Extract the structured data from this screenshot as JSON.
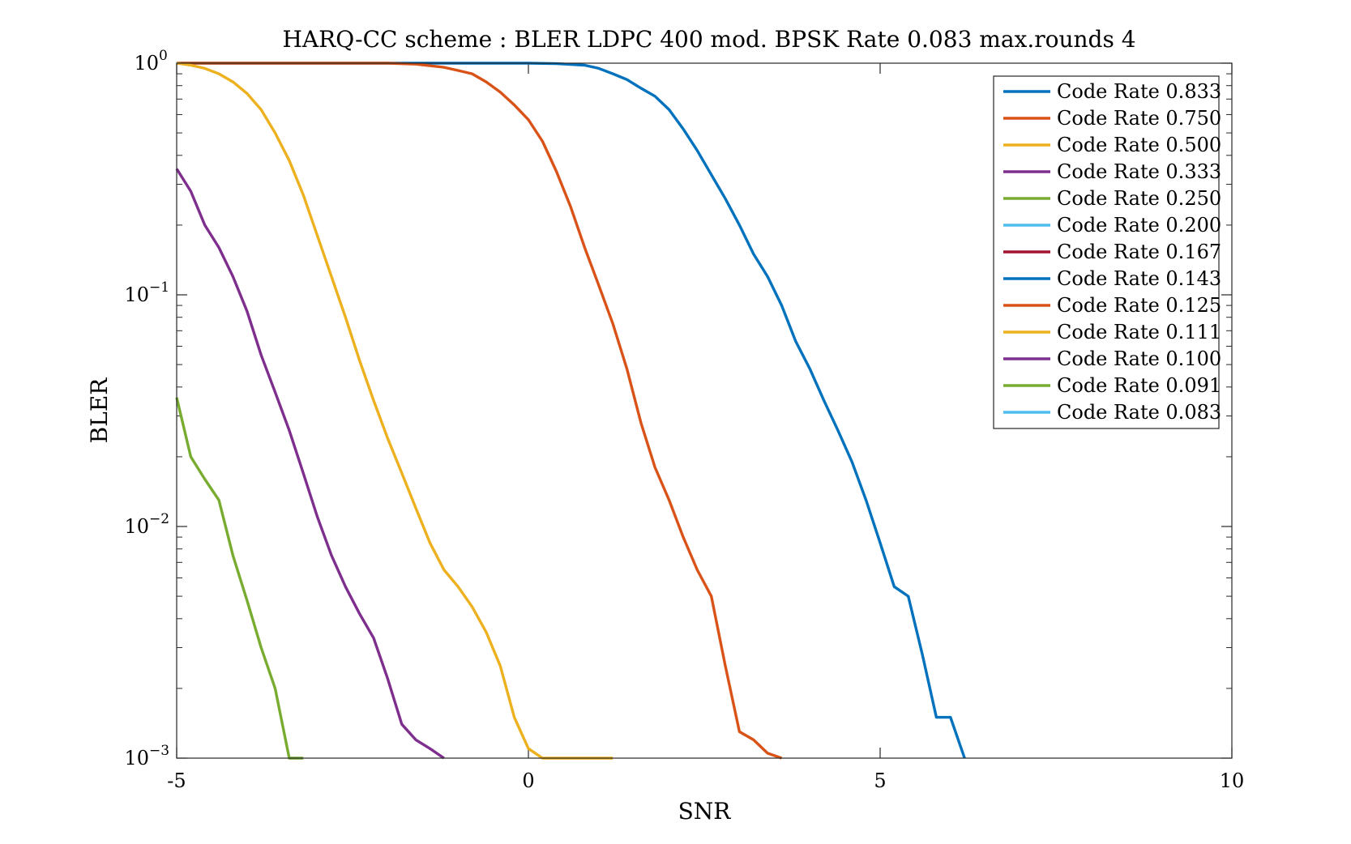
{
  "chart_data": {
    "type": "line",
    "title": "HARQ-CC scheme : BLER LDPC 400 mod. BPSK Rate 0.083 max.rounds 4",
    "xlabel": "SNR",
    "ylabel": "BLER",
    "xlim": [
      -5,
      10
    ],
    "ylim": [
      0.001,
      1
    ],
    "yscale": "log",
    "grid": false,
    "legend_position": "top-right",
    "x_ticks": [
      -5,
      0,
      5,
      10
    ],
    "x_tick_labels": [
      "-5",
      "0",
      "5",
      "10"
    ],
    "y_ticks": [
      1,
      0.1,
      0.01,
      0.001
    ],
    "y_tick_mantissa": [
      "10",
      "10",
      "10",
      "10"
    ],
    "y_tick_exponents": [
      "0",
      "−1",
      "−2",
      "−3"
    ],
    "series": [
      {
        "name": "Code Rate 0.833",
        "color": "#0072BD",
        "x": [
          -5,
          -3,
          -1,
          0,
          0.4,
          0.8,
          1.0,
          1.2,
          1.4,
          1.6,
          1.8,
          2.0,
          2.2,
          2.4,
          2.6,
          2.8,
          3.0,
          3.2,
          3.4,
          3.6,
          3.8,
          4.0,
          4.2,
          4.4,
          4.6,
          4.8,
          5.0,
          5.2,
          5.4,
          5.6,
          5.8,
          6.0,
          6.2
        ],
        "y": [
          1,
          1,
          1,
          1,
          0.995,
          0.98,
          0.95,
          0.9,
          0.85,
          0.78,
          0.72,
          0.63,
          0.52,
          0.42,
          0.33,
          0.26,
          0.2,
          0.15,
          0.12,
          0.09,
          0.063,
          0.048,
          0.035,
          0.026,
          0.019,
          0.013,
          0.0085,
          0.0055,
          0.005,
          0.0028,
          0.0015,
          0.0015,
          0.001
        ]
      },
      {
        "name": "Code Rate 0.750",
        "color": "#D95319",
        "x": [
          -5,
          -3,
          -2,
          -1.6,
          -1.2,
          -1.0,
          -0.8,
          -0.6,
          -0.4,
          -0.2,
          0,
          0.2,
          0.4,
          0.6,
          0.8,
          1.0,
          1.2,
          1.4,
          1.6,
          1.8,
          2.0,
          2.2,
          2.4,
          2.6,
          2.8,
          3.0,
          3.2,
          3.4,
          3.6
        ],
        "y": [
          1,
          1,
          1,
          0.99,
          0.96,
          0.93,
          0.9,
          0.83,
          0.75,
          0.66,
          0.57,
          0.46,
          0.34,
          0.24,
          0.16,
          0.11,
          0.075,
          0.048,
          0.028,
          0.018,
          0.013,
          0.009,
          0.0065,
          0.005,
          0.0025,
          0.0013,
          0.0012,
          0.00105,
          0.001
        ]
      },
      {
        "name": "Code Rate 0.500",
        "color": "#EDB120",
        "x": [
          -5,
          -4.8,
          -4.6,
          -4.4,
          -4.2,
          -4.0,
          -3.8,
          -3.6,
          -3.4,
          -3.2,
          -3.0,
          -2.8,
          -2.6,
          -2.4,
          -2.2,
          -2.0,
          -1.8,
          -1.6,
          -1.4,
          -1.2,
          -1.0,
          -0.8,
          -0.6,
          -0.4,
          -0.2,
          0,
          0.2,
          0.4,
          0.6,
          0.8,
          1.0,
          1.2
        ],
        "y": [
          1,
          0.98,
          0.95,
          0.9,
          0.83,
          0.74,
          0.63,
          0.5,
          0.38,
          0.27,
          0.18,
          0.12,
          0.08,
          0.052,
          0.035,
          0.024,
          0.017,
          0.012,
          0.0085,
          0.0065,
          0.0055,
          0.0045,
          0.0035,
          0.0025,
          0.0015,
          0.0011,
          0.001,
          0.001,
          0.001,
          0.001,
          0.001,
          0.001
        ]
      },
      {
        "name": "Code Rate 0.333",
        "color": "#7E2F8E",
        "x": [
          -5,
          -4.8,
          -4.6,
          -4.4,
          -4.2,
          -4.0,
          -3.8,
          -3.6,
          -3.4,
          -3.2,
          -3.0,
          -2.8,
          -2.6,
          -2.4,
          -2.2,
          -2.0,
          -1.8,
          -1.6,
          -1.4,
          -1.2
        ],
        "y": [
          0.35,
          0.28,
          0.2,
          0.16,
          0.12,
          0.085,
          0.055,
          0.038,
          0.026,
          0.017,
          0.011,
          0.0075,
          0.0055,
          0.0042,
          0.0033,
          0.0022,
          0.0014,
          0.0012,
          0.0011,
          0.001
        ]
      },
      {
        "name": "Code Rate 0.250",
        "color": "#77AC30",
        "x": [
          -5,
          -4.8,
          -4.6,
          -4.4,
          -4.2,
          -4.0,
          -3.8,
          -3.6,
          -3.4,
          -3.2
        ],
        "y": [
          0.036,
          0.02,
          0.016,
          0.013,
          0.0075,
          0.0048,
          0.003,
          0.002,
          0.001,
          0.001
        ]
      },
      {
        "name": "Code Rate 0.200",
        "color": "#4DBEEE",
        "x": [],
        "y": []
      },
      {
        "name": "Code Rate 0.167",
        "color": "#A2142F",
        "x": [],
        "y": []
      },
      {
        "name": "Code Rate 0.143",
        "color": "#0072BD",
        "x": [],
        "y": []
      },
      {
        "name": "Code Rate 0.125",
        "color": "#D95319",
        "x": [],
        "y": []
      },
      {
        "name": "Code Rate 0.111",
        "color": "#EDB120",
        "x": [],
        "y": []
      },
      {
        "name": "Code Rate 0.100",
        "color": "#7E2F8E",
        "x": [],
        "y": []
      },
      {
        "name": "Code Rate 0.091",
        "color": "#77AC30",
        "x": [],
        "y": []
      },
      {
        "name": "Code Rate 0.083",
        "color": "#4DBEEE",
        "x": [],
        "y": []
      }
    ]
  }
}
